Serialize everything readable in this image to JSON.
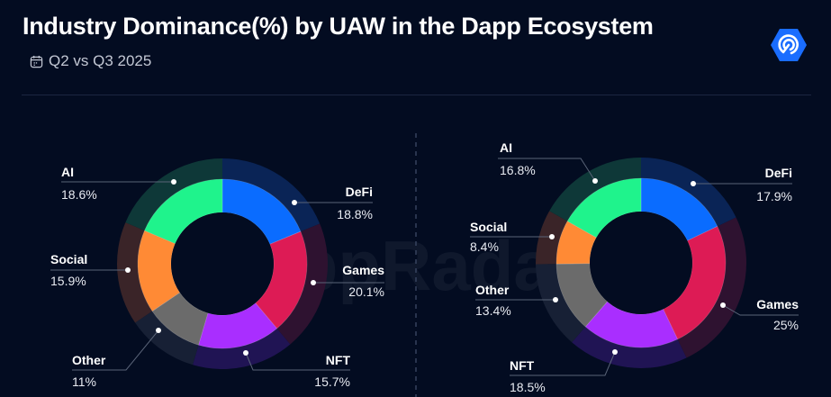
{
  "header": {
    "title": "Industry Dominance(%) by UAW in the Dapp Ecosystem",
    "subtitle": "Q2 vs Q3 2025",
    "subtitle_icon": "calendar-icon",
    "logo_icon": "dappradar-logo-icon",
    "brand_color": "#1a6dff"
  },
  "watermark": "DappRadar",
  "colors": {
    "DeFi": {
      "inner": "#0a6cff",
      "outer": "#0a2456"
    },
    "Games": {
      "inner": "#dd1b55",
      "outer": "#2e1230"
    },
    "NFT": {
      "inner": "#a92eff",
      "outer": "#201454"
    },
    "Other": {
      "inner": "#6b6b6b",
      "outer": "#172035"
    },
    "Social": {
      "inner": "#ff8a35",
      "outer": "#3a2428"
    },
    "AI": {
      "inner": "#1ff38c",
      "outer": "#0e3838"
    }
  },
  "chart_data": [
    {
      "type": "pie",
      "variant": "donut",
      "period": "Q2 2025",
      "categories": [
        "DeFi",
        "Games",
        "NFT",
        "Other",
        "Social",
        "AI"
      ],
      "values": [
        18.8,
        20.1,
        15.7,
        11,
        15.9,
        18.6
      ],
      "labels": [
        "18.8%",
        "20.1%",
        "15.7%",
        "11%",
        "15.9%",
        "18.6%"
      ],
      "start": "12 o'clock, clockwise"
    },
    {
      "type": "pie",
      "variant": "donut",
      "period": "Q3 2025",
      "categories": [
        "DeFi",
        "Games",
        "NFT",
        "Other",
        "Social",
        "AI"
      ],
      "values": [
        17.9,
        25,
        18.5,
        13.4,
        8.4,
        16.8
      ],
      "labels": [
        "17.9%",
        "25%",
        "18.5%",
        "13.4%",
        "8.4%",
        "16.8%"
      ],
      "start": "12 o'clock, clockwise"
    }
  ]
}
